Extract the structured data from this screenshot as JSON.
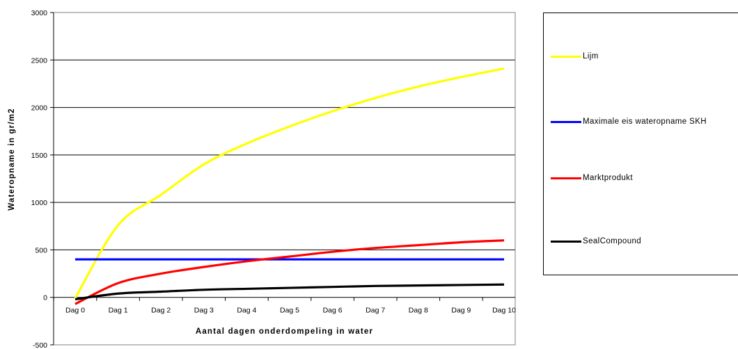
{
  "chart_data": {
    "type": "line",
    "xlabel": "Aantal dagen onderdompeling in water",
    "ylabel": "Wateropname in gr/m2",
    "ylim": [
      -500,
      3000
    ],
    "yticks": [
      -500,
      0,
      500,
      1000,
      1500,
      2000,
      2500,
      3000
    ],
    "categories": [
      "Dag 0",
      "Dag 1",
      "Dag 2",
      "Dag 3",
      "Dag 4",
      "Dag 5",
      "Dag 6",
      "Dag 7",
      "Dag 8",
      "Dag 9",
      "Dag 10"
    ],
    "x": [
      0,
      1,
      2,
      3,
      4,
      5,
      6,
      7,
      8,
      9,
      10
    ],
    "grid": true,
    "legend_position": "right",
    "series": [
      {
        "name": "Lijm",
        "color": "#ffff00",
        "values": [
          -10,
          760,
          1080,
          1400,
          1620,
          1800,
          1960,
          2100,
          2220,
          2320,
          2410
        ]
      },
      {
        "name": "Maximale eis wateropname SKH",
        "color": "#0000ff",
        "values": [
          400,
          400,
          400,
          400,
          400,
          400,
          400,
          400,
          400,
          400,
          400
        ]
      },
      {
        "name": "Marktprodukt",
        "color": "#ff0000",
        "values": [
          -70,
          150,
          250,
          320,
          380,
          430,
          480,
          520,
          550,
          580,
          600
        ]
      },
      {
        "name": "SealCompound",
        "color": "#000000",
        "values": [
          -20,
          40,
          60,
          80,
          90,
          100,
          110,
          120,
          125,
          130,
          135
        ]
      }
    ]
  }
}
